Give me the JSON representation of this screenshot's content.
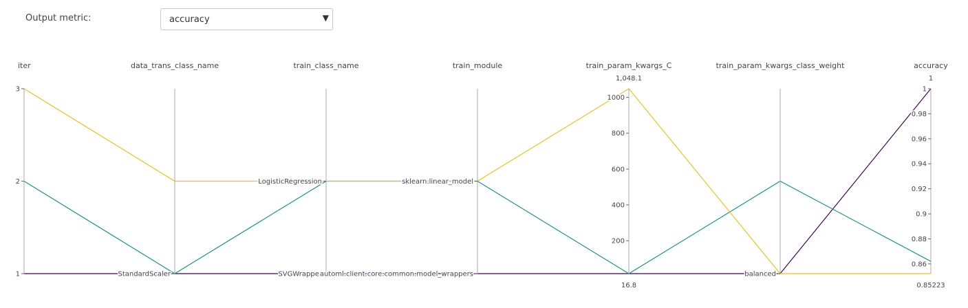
{
  "controls": {
    "metric_label": "Output metric:",
    "metric_value": "accuracy"
  },
  "chart_data": {
    "type": "parallel_coordinates",
    "dimensions": [
      {
        "name": "iter",
        "kind": "numeric",
        "range": [
          1,
          3
        ],
        "ticks": [
          {
            "value": 1,
            "label": "1"
          },
          {
            "value": 2,
            "label": "2"
          },
          {
            "value": 3,
            "label": "3"
          }
        ],
        "tick_side": "left"
      },
      {
        "name": "data_trans_class_name",
        "kind": "categorical",
        "range": [
          0,
          1
        ],
        "categories": [
          {
            "value": 0,
            "label": "StandardScaler"
          }
        ],
        "tick_side": "left"
      },
      {
        "name": "train_class_name",
        "kind": "categorical",
        "range": [
          0,
          1
        ],
        "categories": [
          {
            "value": 0,
            "label": "SVGWrapper"
          },
          {
            "value": 0.5,
            "label": "LogisticRegression"
          }
        ],
        "tick_side": "left"
      },
      {
        "name": "train_module",
        "kind": "categorical",
        "range": [
          0,
          1
        ],
        "categories": [
          {
            "value": 0,
            "label": "automl.client.core.common.model_wrappers"
          },
          {
            "value": 0.5,
            "label": "sklearn.linear_model"
          }
        ],
        "tick_side": "left"
      },
      {
        "name": "train_param_kwargs_C",
        "kind": "numeric",
        "range": [
          16.8,
          1048.1
        ],
        "ticks": [
          {
            "value": 200,
            "label": "200"
          },
          {
            "value": 400,
            "label": "400"
          },
          {
            "value": 600,
            "label": "600"
          },
          {
            "value": 800,
            "label": "800"
          },
          {
            "value": 1000,
            "label": "1000"
          }
        ],
        "extrema": {
          "max": "1,048.1",
          "min": "16.8"
        },
        "tick_side": "left"
      },
      {
        "name": "train_param_kwargs_class_weight",
        "kind": "categorical",
        "range": [
          0,
          1
        ],
        "categories": [
          {
            "value": 0,
            "label": "balanced"
          }
        ],
        "tick_side": "left"
      },
      {
        "name": "accuracy",
        "kind": "numeric",
        "range": [
          0.85223,
          1
        ],
        "ticks": [
          {
            "value": 0.86,
            "label": "0.86"
          },
          {
            "value": 0.88,
            "label": "0.88"
          },
          {
            "value": 0.9,
            "label": "0.9"
          },
          {
            "value": 0.92,
            "label": "0.92"
          },
          {
            "value": 0.94,
            "label": "0.94"
          },
          {
            "value": 0.96,
            "label": "0.96"
          },
          {
            "value": 0.98,
            "label": "0.98"
          },
          {
            "value": 1,
            "label": "1"
          }
        ],
        "extrema": {
          "max": "1",
          "min": "0.85223"
        },
        "tick_side": "left"
      }
    ],
    "lines": [
      {
        "color": "#440154",
        "values": [
          1,
          0,
          0,
          0,
          16.8,
          0,
          1
        ]
      },
      {
        "color": "#21918c",
        "values": [
          2,
          0,
          0.5,
          0.5,
          16.8,
          0.5,
          0.862
        ]
      },
      {
        "color": "#e3c32b",
        "values": [
          3,
          0.5,
          0.5,
          0.5,
          1048.1,
          0,
          0.85223
        ]
      }
    ]
  }
}
